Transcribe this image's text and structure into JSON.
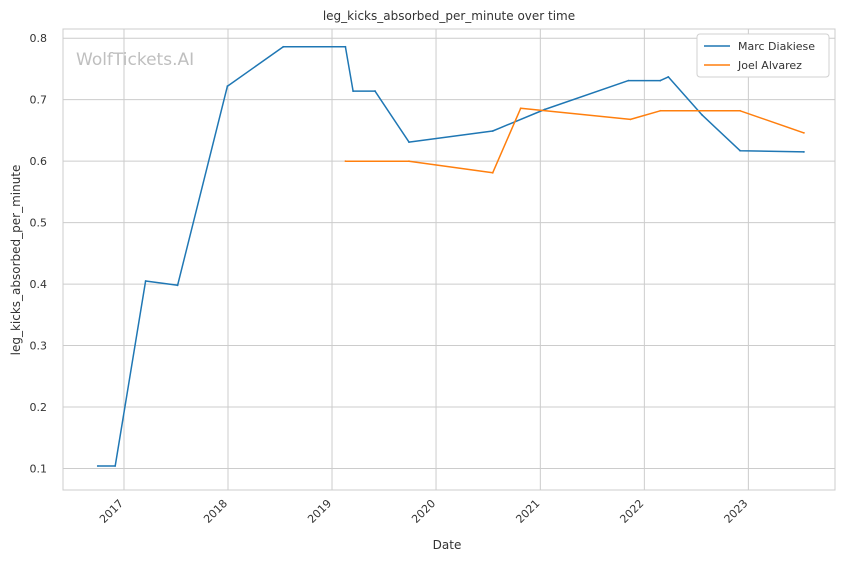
{
  "chart_data": {
    "type": "line",
    "title": "leg_kicks_absorbed_per_minute over time",
    "xlabel": "Date",
    "ylabel": "leg_kicks_absorbed_per_minute",
    "watermark": "WolfTickets.AI",
    "xlim": [
      "2016-06-01",
      "2023-11-01"
    ],
    "ylim": [
      0.065,
      0.815
    ],
    "x_ticks": [
      "2017-01-01",
      "2018-01-01",
      "2019-01-01",
      "2020-01-01",
      "2021-01-01",
      "2022-01-01",
      "2023-01-01"
    ],
    "x_tick_labels": [
      "2017",
      "2018",
      "2019",
      "2020",
      "2021",
      "2022",
      "2023"
    ],
    "y_ticks": [
      0.1,
      0.2,
      0.3,
      0.4,
      0.5,
      0.6,
      0.7,
      0.8
    ],
    "y_tick_labels": [
      "0.1",
      "0.2",
      "0.3",
      "0.4",
      "0.5",
      "0.6",
      "0.7",
      "0.8"
    ],
    "grid": true,
    "legend_position": "top-right",
    "series": [
      {
        "name": "Marc Diakiese",
        "color": "#1f77b4",
        "points": [
          [
            "2016-10-01",
            0.104
          ],
          [
            "2016-12-01",
            0.104
          ],
          [
            "2017-03-18",
            0.405
          ],
          [
            "2017-07-08",
            0.398
          ],
          [
            "2017-12-30",
            0.722
          ],
          [
            "2018-07-14",
            0.786
          ],
          [
            "2019-02-17",
            0.786
          ],
          [
            "2019-03-16",
            0.714
          ],
          [
            "2019-06-01",
            0.714
          ],
          [
            "2019-09-28",
            0.631
          ],
          [
            "2020-07-18",
            0.649
          ],
          [
            "2021-01-16",
            0.684
          ],
          [
            "2021-11-06",
            0.731
          ],
          [
            "2022-02-26",
            0.731
          ],
          [
            "2022-03-26",
            0.737
          ],
          [
            "2022-07-23",
            0.675
          ],
          [
            "2022-12-03",
            0.617
          ],
          [
            "2023-07-15",
            0.615
          ]
        ]
      },
      {
        "name": "Joel Alvarez",
        "color": "#ff7f0e",
        "points": [
          [
            "2019-02-17",
            0.6
          ],
          [
            "2019-09-28",
            0.6
          ],
          [
            "2020-07-18",
            0.581
          ],
          [
            "2020-10-24",
            0.686
          ],
          [
            "2021-11-13",
            0.668
          ],
          [
            "2022-02-26",
            0.682
          ],
          [
            "2022-12-03",
            0.682
          ],
          [
            "2023-07-15",
            0.646
          ]
        ]
      }
    ]
  }
}
